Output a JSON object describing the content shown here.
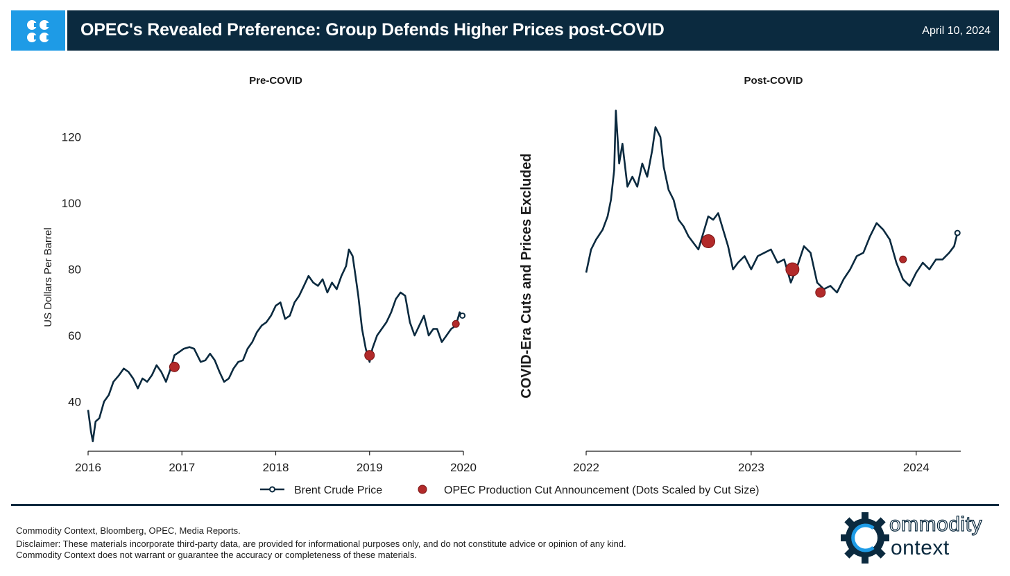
{
  "header": {
    "title": "OPEC's Revealed Preference: Group Defends Higher Prices post-COVID",
    "date": "April 10, 2024",
    "logo_icon": "opec-logo-icon",
    "background_color": "#0b2a3f",
    "logo_color": "#1e9be6"
  },
  "legend": {
    "line_label": "Brent Crude Price",
    "dot_label": "OPEC Production Cut Announcement (Dots Scaled by Cut Size)"
  },
  "footer": {
    "source": "Commodity Context, Bloomberg, OPEC, Media Reports.",
    "disclaimer": "Disclaimer: These materials incorporate third-party data, are provided for informational purposes only, and do not constitute advice or opinion of any kind. Commodity Context does not warrant or guarantee the accuracy or completeness of these materials.",
    "brand_line1": "ommodity",
    "brand_line2": "ontext"
  },
  "colors": {
    "line": "#0b2a3f",
    "dot": "#b22a2a",
    "dot_edge": "#7a1515"
  },
  "chart_data": [
    {
      "type": "line",
      "title": "Pre-COVID",
      "ylabel": "US Dollars Per Barrel",
      "xlim": [
        2016.0,
        2020.0
      ],
      "ylim": [
        25,
        130
      ],
      "xticks": [
        2016,
        2017,
        2018,
        2019,
        2020
      ],
      "xtick_labels": [
        "2016",
        "2017",
        "2018",
        "2019",
        "2020"
      ],
      "yticks": [
        40,
        60,
        80,
        100,
        120
      ],
      "ytick_labels": [
        "40",
        "60",
        "80",
        "100",
        "120"
      ],
      "series": [
        {
          "name": "Brent Crude Price",
          "x": [
            2016.0,
            2016.03,
            2016.05,
            2016.08,
            2016.12,
            2016.17,
            2016.22,
            2016.27,
            2016.33,
            2016.38,
            2016.43,
            2016.48,
            2016.53,
            2016.58,
            2016.63,
            2016.68,
            2016.73,
            2016.78,
            2016.83,
            2016.88,
            2016.92,
            2016.97,
            2017.02,
            2017.08,
            2017.13,
            2017.2,
            2017.25,
            2017.3,
            2017.35,
            2017.4,
            2017.45,
            2017.5,
            2017.55,
            2017.6,
            2017.65,
            2017.7,
            2017.75,
            2017.8,
            2017.85,
            2017.9,
            2017.95,
            2018.0,
            2018.05,
            2018.1,
            2018.15,
            2018.2,
            2018.25,
            2018.3,
            2018.35,
            2018.4,
            2018.45,
            2018.5,
            2018.55,
            2018.6,
            2018.65,
            2018.7,
            2018.75,
            2018.78,
            2018.82,
            2018.85,
            2018.88,
            2018.92,
            2018.96,
            2019.0,
            2019.03,
            2019.08,
            2019.13,
            2019.18,
            2019.23,
            2019.28,
            2019.33,
            2019.38,
            2019.43,
            2019.48,
            2019.53,
            2019.58,
            2019.63,
            2019.68,
            2019.72,
            2019.77,
            2019.82,
            2019.87,
            2019.92,
            2019.96,
            2019.99
          ],
          "y": [
            37.5,
            31,
            28,
            34,
            35,
            40,
            42,
            46,
            48,
            50,
            49,
            47,
            44,
            47,
            46,
            48,
            51,
            49,
            46,
            50,
            54,
            55,
            56,
            56.5,
            56,
            52,
            52.5,
            54.5,
            52.5,
            49,
            46,
            47,
            50,
            52,
            52.5,
            56,
            58,
            61,
            63,
            64,
            66,
            69,
            70,
            65,
            66,
            70,
            72,
            75,
            78,
            76,
            75,
            77,
            73,
            76,
            74,
            78,
            81,
            86,
            84,
            78,
            72,
            62,
            56,
            52,
            56,
            60,
            62,
            64,
            67,
            71,
            73,
            72,
            64,
            60,
            63,
            66,
            60,
            62,
            62,
            58,
            60,
            62,
            63,
            67,
            66
          ]
        }
      ],
      "cut_announcements": [
        {
          "x": 2016.92,
          "y": 50.5,
          "size": "medium"
        },
        {
          "x": 2019.0,
          "y": 54,
          "size": "medium"
        },
        {
          "x": 2019.92,
          "y": 63.5,
          "size": "small"
        }
      ]
    },
    {
      "type": "line",
      "title": "Post-COVID",
      "ylabel": "COVID-Era Cuts and Prices Excluded",
      "xlim": [
        2022.0,
        2024.27
      ],
      "ylim": [
        25,
        130
      ],
      "xticks": [
        2022,
        2023,
        2024
      ],
      "xtick_labels": [
        "2022",
        "2023",
        "2024"
      ],
      "series": [
        {
          "name": "Brent Crude Price",
          "x": [
            2022.0,
            2022.03,
            2022.06,
            2022.1,
            2022.13,
            2022.15,
            2022.17,
            2022.18,
            2022.2,
            2022.22,
            2022.25,
            2022.28,
            2022.31,
            2022.34,
            2022.37,
            2022.4,
            2022.42,
            2022.45,
            2022.47,
            2022.5,
            2022.53,
            2022.56,
            2022.59,
            2022.62,
            2022.65,
            2022.68,
            2022.71,
            2022.74,
            2022.77,
            2022.8,
            2022.83,
            2022.86,
            2022.89,
            2022.92,
            2022.96,
            2023.0,
            2023.04,
            2023.08,
            2023.12,
            2023.16,
            2023.2,
            2023.24,
            2023.28,
            2023.32,
            2023.36,
            2023.4,
            2023.44,
            2023.48,
            2023.52,
            2023.56,
            2023.6,
            2023.64,
            2023.68,
            2023.72,
            2023.76,
            2023.8,
            2023.84,
            2023.88,
            2023.92,
            2023.96,
            2024.0,
            2024.04,
            2024.08,
            2024.12,
            2024.16,
            2024.2,
            2024.23,
            2024.25
          ],
          "y": [
            79,
            86,
            89,
            92,
            96,
            101,
            110,
            128,
            112,
            118,
            105,
            108,
            105,
            112,
            108,
            116,
            123,
            120,
            111,
            104,
            101,
            95,
            93,
            90,
            88,
            86,
            91,
            96,
            95,
            97,
            92,
            87,
            80,
            82,
            84,
            80,
            84,
            85,
            86,
            82,
            83,
            76,
            81,
            87,
            85,
            76,
            74,
            75,
            73,
            77,
            80,
            84,
            85,
            90,
            94,
            92,
            89,
            82,
            77,
            75,
            79,
            82,
            80,
            83,
            83,
            85,
            87,
            91
          ]
        }
      ],
      "cut_announcements": [
        {
          "x": 2022.74,
          "y": 88.5,
          "size": "large"
        },
        {
          "x": 2023.25,
          "y": 80,
          "size": "large"
        },
        {
          "x": 2023.42,
          "y": 73,
          "size": "medium"
        },
        {
          "x": 2023.92,
          "y": 83,
          "size": "small"
        }
      ]
    }
  ]
}
